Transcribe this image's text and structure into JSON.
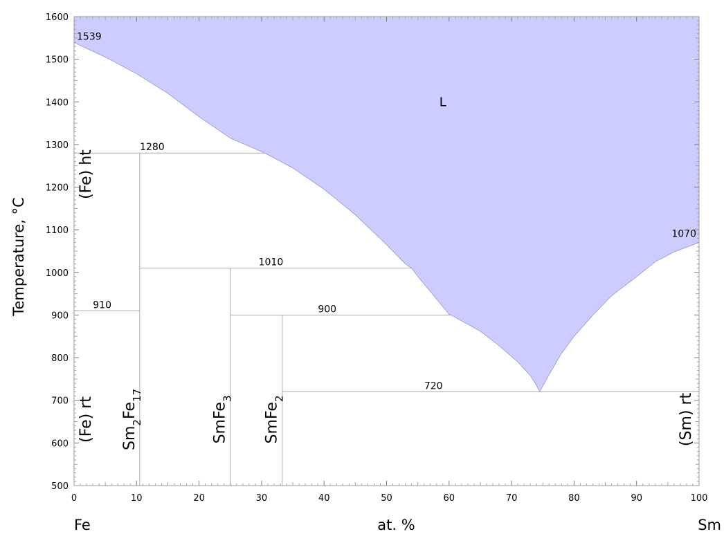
{
  "chart_data": {
    "type": "area",
    "xlabel": "at. %",
    "ylabel": "Temperature, °C",
    "xlim": [
      0,
      100
    ],
    "ylim": [
      500,
      1600
    ],
    "x_ticks": [
      "0",
      "10",
      "20",
      "30",
      "40",
      "50",
      "60",
      "70",
      "80",
      "90",
      "100"
    ],
    "y_ticks": [
      "500",
      "600",
      "700",
      "800",
      "900",
      "1000",
      "1100",
      "1200",
      "1300",
      "1400",
      "1500",
      "1600"
    ],
    "left_element": "Fe",
    "right_element": "Sm",
    "liquid_label": "L",
    "liquid_color": "#ccccff",
    "liquidus_left": [
      [
        0,
        1539
      ],
      [
        5,
        1505
      ],
      [
        10,
        1466
      ],
      [
        15,
        1420
      ],
      [
        20,
        1365
      ],
      [
        25,
        1315
      ],
      [
        30,
        1283
      ],
      [
        30.5,
        1280
      ],
      [
        35,
        1245
      ],
      [
        37,
        1225
      ],
      [
        40,
        1195
      ],
      [
        45,
        1135
      ],
      [
        50,
        1065
      ],
      [
        53,
        1020
      ],
      [
        54,
        1010
      ],
      [
        55,
        990
      ],
      [
        60,
        902
      ],
      [
        60.3,
        900
      ],
      [
        65,
        862
      ],
      [
        68,
        828
      ],
      [
        71,
        790
      ],
      [
        73,
        758
      ],
      [
        74,
        735
      ],
      [
        74.5,
        720
      ]
    ],
    "liquidus_right": [
      [
        74.5,
        720
      ],
      [
        76,
        760
      ],
      [
        78,
        810
      ],
      [
        80,
        850
      ],
      [
        83,
        900
      ],
      [
        86,
        945
      ],
      [
        90,
        990
      ],
      [
        93,
        1025
      ],
      [
        96,
        1048
      ],
      [
        100,
        1070
      ]
    ],
    "invariant_lines": [
      {
        "label": "1280",
        "T": 1280,
        "x_from": 0,
        "x_to": 30.5,
        "label_x": 12.5
      },
      {
        "label": "1010",
        "T": 1010,
        "x_from": 10.5,
        "x_to": 54,
        "label_x": 31.5
      },
      {
        "label": "910",
        "T": 910,
        "x_from": 0,
        "x_to": 10.5,
        "label_x": 4.5
      },
      {
        "label": "900",
        "T": 900,
        "x_from": 25,
        "x_to": 60.3,
        "label_x": 40.5
      },
      {
        "label": "720",
        "T": 720,
        "x_from": 33.3,
        "x_to": 100,
        "label_x": 57.5
      }
    ],
    "compounds": [
      {
        "name": "Sm2Fe17",
        "base": "Sm",
        "sub1": "2",
        "mid": "Fe",
        "sub2": "17",
        "x": 10.5,
        "T_top": 1280
      },
      {
        "name": "SmFe3",
        "base": "SmFe",
        "sub1": "3",
        "x": 25,
        "T_top": 1010
      },
      {
        "name": "SmFe2",
        "base": "SmFe",
        "sub1": "2",
        "x": 33.3,
        "T_top": 900
      }
    ],
    "point_labels": [
      {
        "text": "1539",
        "x": 0,
        "T": 1539
      },
      {
        "text": "1070",
        "x": 100,
        "T": 1070
      }
    ],
    "phase_labels": [
      "(Fe) ht",
      "(Fe) rt",
      "(Sm) rt"
    ]
  }
}
